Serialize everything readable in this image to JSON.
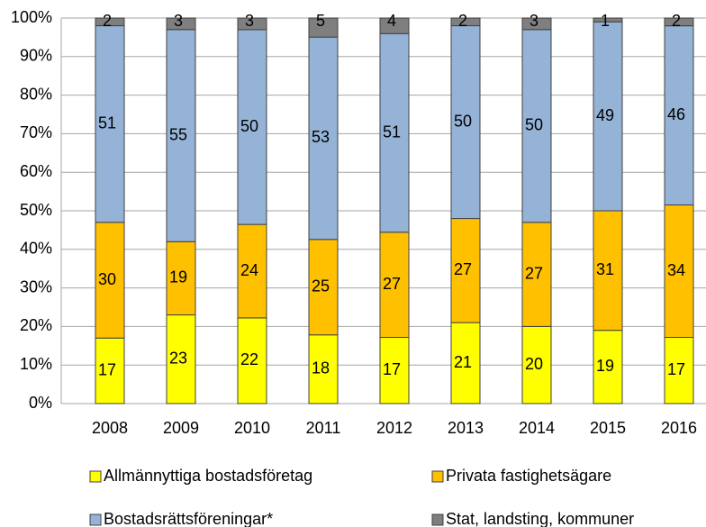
{
  "chart_data": {
    "type": "bar",
    "stacked": "percent",
    "categories": [
      "2008",
      "2009",
      "2010",
      "2011",
      "2012",
      "2013",
      "2014",
      "2015",
      "2016"
    ],
    "series": [
      {
        "name": "Allmännyttiga bostadsföretag",
        "color": "#ffff00",
        "values": [
          17,
          23,
          22,
          18,
          17,
          21,
          20,
          19,
          17
        ]
      },
      {
        "name": "Privata fastighetsägare",
        "color": "#ffc000",
        "values": [
          30,
          19,
          24,
          25,
          27,
          27,
          27,
          31,
          34
        ]
      },
      {
        "name": "Bostadsrättsföreningar*",
        "color": "#95b3d7",
        "values": [
          51,
          55,
          50,
          53,
          51,
          50,
          50,
          49,
          46
        ]
      },
      {
        "name": "Stat, landsting, kommuner",
        "color": "#7f7f7f",
        "values": [
          2,
          3,
          3,
          5,
          4,
          2,
          3,
          1,
          2
        ]
      }
    ],
    "ylim": [
      0,
      100
    ],
    "yticks": [
      {
        "value": 0,
        "label": "0%"
      },
      {
        "value": 10,
        "label": "10%"
      },
      {
        "value": 20,
        "label": "20%"
      },
      {
        "value": 30,
        "label": "30%"
      },
      {
        "value": 40,
        "label": "40%"
      },
      {
        "value": 50,
        "label": "50%"
      },
      {
        "value": 60,
        "label": "60%"
      },
      {
        "value": 70,
        "label": "70%"
      },
      {
        "value": 80,
        "label": "80%"
      },
      {
        "value": 90,
        "label": "90%"
      },
      {
        "value": 100,
        "label": "100%"
      }
    ],
    "grid": true,
    "legend": "bottom"
  }
}
